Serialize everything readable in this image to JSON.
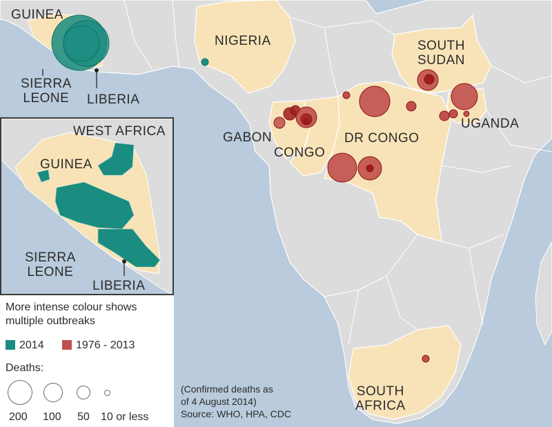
{
  "colors": {
    "sea": "#b9cbdc",
    "land": "#dcdcdc",
    "highlight_land": "#f8e3b8",
    "outbreak_2014": "#1a8c80",
    "outbreak_1976_2013": "#c0504d",
    "outbreak_dark": "#9e1c1c"
  },
  "map_labels": {
    "guinea": "GUINEA",
    "sierra_leone": "SIERRA\nLEONE",
    "liberia": "LIBERIA",
    "nigeria": "NIGERIA",
    "south_sudan": "SOUTH\nSUDAN",
    "gabon": "GABON",
    "congo": "CONGO",
    "dr_congo": "DR CONGO",
    "uganda": "UGANDA",
    "south_africa": "SOUTH\nAFRICA"
  },
  "inset": {
    "title": "WEST AFRICA",
    "guinea": "GUINEA",
    "sierra_leone": "SIERRA\nLEONE",
    "liberia": "LIBERIA"
  },
  "legend": {
    "intro": "More intense colour shows\nmultiple outbreaks",
    "series": [
      {
        "label": "2014",
        "color": "#1a8c80"
      },
      {
        "label": "1976 - 2013",
        "color": "#c0504d"
      }
    ],
    "deaths_title": "Deaths:",
    "sizes": [
      {
        "label": "200",
        "deaths": 200
      },
      {
        "label": "100",
        "deaths": 100
      },
      {
        "label": "50",
        "deaths": 50
      },
      {
        "label": "10 or less",
        "deaths": 10
      }
    ]
  },
  "note": {
    "line1": "(Confirmed deaths as",
    "line2": "of 4 August 2014)",
    "source": "Source: WHO, HPA, CDC"
  }
}
